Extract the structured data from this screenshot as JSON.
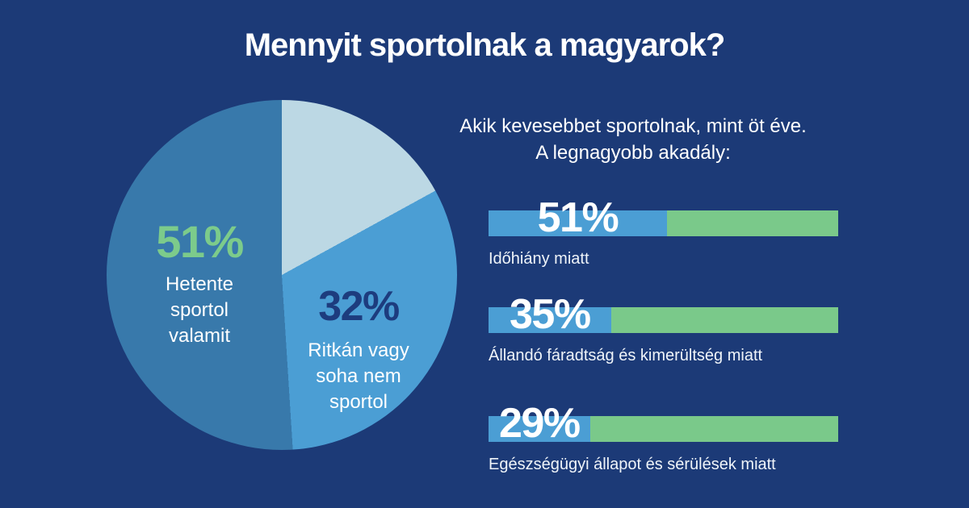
{
  "background_color": "#1c3a77",
  "colors": {
    "navy_background": "#1c3a77",
    "bar_blue": "#4b9ed4",
    "bar_green": "#7ac98a",
    "pie_steel_blue": "#3879ab",
    "pie_light_blue": "#4b9ed4",
    "pie_pale_blue": "#bcd8e4",
    "green_value_text": "#7ccb8b",
    "navy_value_text": "#1d3c7e",
    "white_text": "#ffffff"
  },
  "title": "Mennyit sportolnak a magyarok?",
  "subtitle": {
    "line1": "Akik kevesebbet sportolnak, mint öt éve.",
    "line2": "A legnagyobb akadály:"
  },
  "chart_data": [
    {
      "type": "pie",
      "start_angle_deg": 0,
      "direction": "clockwise",
      "slices": [
        {
          "label": "",
          "value": 17,
          "color": "#bcd8e4"
        },
        {
          "label": "Ritkán vagy soha nem sportol",
          "value": 32,
          "color": "#4b9ed4"
        },
        {
          "label": "Hetente sportol valamit",
          "value": 51,
          "color": "#3879ab"
        }
      ],
      "labels": {
        "weekly": {
          "value_label": "51%",
          "caption": "Hetente\nsportol\nvalamit"
        },
        "rarely": {
          "value_label": "32%",
          "caption": "Ritkán vagy\nsoha nem\nsportol"
        }
      }
    },
    {
      "type": "bar",
      "orientation": "horizontal",
      "xlim": [
        0,
        100
      ],
      "categories": [
        "Időhiány miatt",
        "Állandó fáradtság és kimerültség miatt",
        "Egészségügyi állapot és sérülések miatt"
      ],
      "values": [
        51,
        35,
        29
      ],
      "value_labels": [
        "51%",
        "35%",
        "29%"
      ],
      "filled_color": "#4b9ed4",
      "remainder_color": "#7ac98a"
    }
  ]
}
